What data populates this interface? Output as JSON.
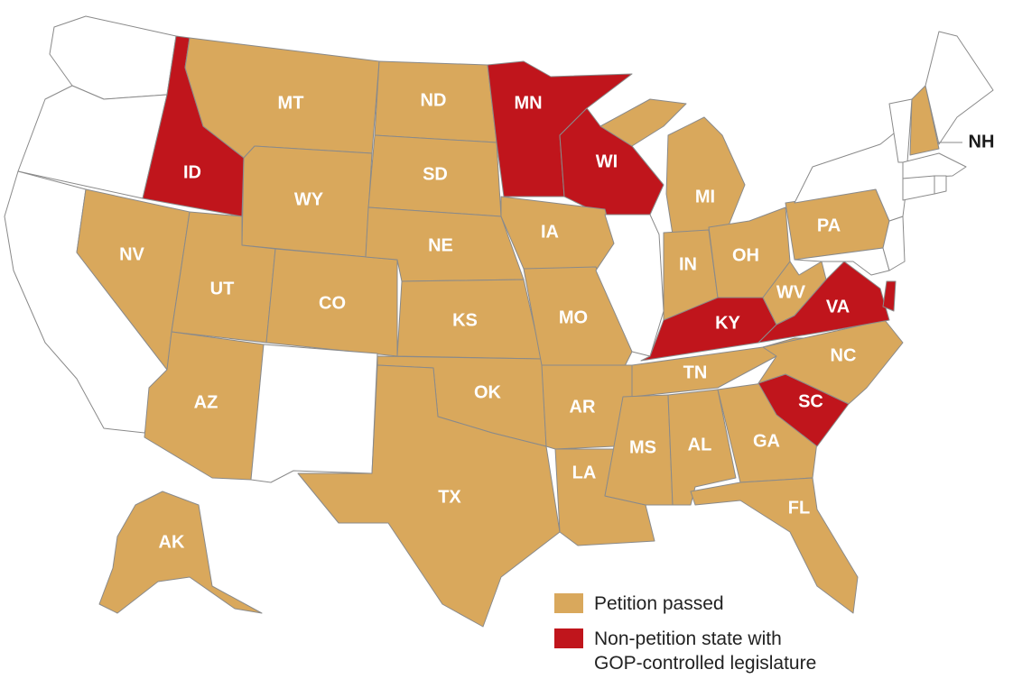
{
  "colors": {
    "petition": "#d9a85c",
    "non_petition": "#c0151c",
    "none": "#ffffff",
    "border": "#8a8a8a"
  },
  "legend": [
    {
      "key": "petition",
      "label": "Petition passed"
    },
    {
      "key": "non_petition",
      "label_lines": [
        "Non-petition state with",
        "GOP-controlled legislature"
      ]
    }
  ],
  "states": {
    "WA": {
      "status": "none"
    },
    "OR": {
      "status": "none"
    },
    "CA": {
      "status": "none"
    },
    "ID": {
      "status": "non_petition",
      "label": "ID"
    },
    "MT": {
      "status": "petition",
      "label": "MT"
    },
    "ND": {
      "status": "petition",
      "label": "ND"
    },
    "MN": {
      "status": "non_petition",
      "label": "MN"
    },
    "WI": {
      "status": "non_petition",
      "label": "WI"
    },
    "SD": {
      "status": "petition",
      "label": "SD"
    },
    "WY": {
      "status": "petition",
      "label": "WY"
    },
    "NV": {
      "status": "petition",
      "label": "NV"
    },
    "UT": {
      "status": "petition",
      "label": "UT"
    },
    "CO": {
      "status": "petition",
      "label": "CO"
    },
    "NE": {
      "status": "petition",
      "label": "NE"
    },
    "IA": {
      "status": "petition",
      "label": "IA"
    },
    "KS": {
      "status": "petition",
      "label": "KS"
    },
    "MO": {
      "status": "petition",
      "label": "MO"
    },
    "IL": {
      "status": "none"
    },
    "MI": {
      "status": "petition",
      "label": "MI"
    },
    "IN": {
      "status": "petition",
      "label": "IN"
    },
    "OH": {
      "status": "petition",
      "label": "OH"
    },
    "PA": {
      "status": "petition",
      "label": "PA"
    },
    "WV": {
      "status": "petition",
      "label": "WV"
    },
    "VA": {
      "status": "non_petition",
      "label": "VA"
    },
    "KY": {
      "status": "non_petition",
      "label": "KY"
    },
    "AZ": {
      "status": "petition",
      "label": "AZ"
    },
    "NM": {
      "status": "none"
    },
    "OK": {
      "status": "petition",
      "label": "OK"
    },
    "AR": {
      "status": "petition",
      "label": "AR"
    },
    "TN": {
      "status": "petition",
      "label": "TN"
    },
    "NC": {
      "status": "petition",
      "label": "NC"
    },
    "SC": {
      "status": "non_petition",
      "label": "SC"
    },
    "TX": {
      "status": "petition",
      "label": "TX"
    },
    "LA": {
      "status": "petition",
      "label": "LA"
    },
    "MS": {
      "status": "petition",
      "label": "MS"
    },
    "AL": {
      "status": "petition",
      "label": "AL"
    },
    "GA": {
      "status": "petition",
      "label": "GA"
    },
    "FL": {
      "status": "petition",
      "label": "FL"
    },
    "AK": {
      "status": "petition",
      "label": "AK"
    },
    "NH": {
      "status": "petition",
      "label": "NH"
    },
    "DE": {
      "status": "non_petition"
    },
    "MD": {
      "status": "none"
    },
    "NJ": {
      "status": "none"
    },
    "NY": {
      "status": "none"
    },
    "VT": {
      "status": "none"
    },
    "ME": {
      "status": "none"
    },
    "MA": {
      "status": "none"
    },
    "CT": {
      "status": "none"
    },
    "RI": {
      "status": "none"
    }
  }
}
